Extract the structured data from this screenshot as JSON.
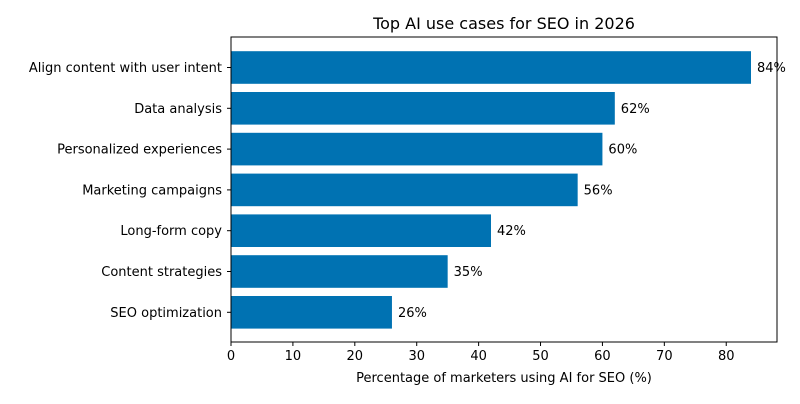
{
  "chart_data": {
    "type": "bar",
    "orientation": "horizontal",
    "title": "Top AI use cases for SEO in 2026",
    "xlabel": "Percentage of marketers using AI for SEO (%)",
    "ylabel": "",
    "xlim": [
      0,
      88.2
    ],
    "xticks": [
      0,
      10,
      20,
      30,
      40,
      50,
      60,
      70,
      80
    ],
    "categories": [
      "Align content with user intent",
      "Data analysis",
      "Personalized experiences",
      "Marketing campaigns",
      "Long-form copy",
      "Content strategies",
      "SEO optimization"
    ],
    "values": [
      84,
      62,
      60,
      56,
      42,
      35,
      26
    ],
    "value_labels": [
      "84%",
      "62%",
      "60%",
      "56%",
      "42%",
      "35%",
      "26%"
    ],
    "bar_color": "#0072b2",
    "grid": false,
    "legend": "none"
  }
}
